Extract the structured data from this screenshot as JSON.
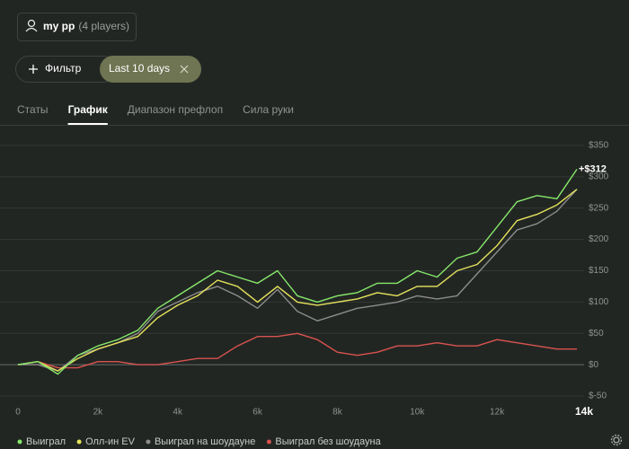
{
  "header": {
    "name": "my pp",
    "players": "(4 players)"
  },
  "filters": {
    "button": "Фильтр",
    "chip": "Last 10 days"
  },
  "tabs": {
    "items": [
      "Статы",
      "График",
      "Диапазон префлоп",
      "Сила руки"
    ],
    "active": 1
  },
  "chart_data": {
    "type": "line",
    "annotation": "+$312",
    "x": [
      0,
      500,
      1000,
      1500,
      2000,
      2500,
      3000,
      3500,
      4000,
      4500,
      5000,
      5500,
      6000,
      6500,
      7000,
      7500,
      8000,
      8500,
      9000,
      9500,
      10000,
      10500,
      11000,
      11500,
      12000,
      12500,
      13000,
      13500,
      14000
    ],
    "xlim": [
      0,
      14000
    ],
    "xticks": [
      0,
      {
        "value": 2000,
        "label": "2k"
      },
      {
        "value": 4000,
        "label": "4k"
      },
      {
        "value": 6000,
        "label": "6k"
      },
      {
        "value": 8000,
        "label": "8k"
      },
      {
        "value": 10000,
        "label": "10k"
      },
      {
        "value": 12000,
        "label": "12k"
      },
      {
        "value": 14000,
        "label": "14k"
      }
    ],
    "ylim": [
      -60,
      370
    ],
    "yticks": [
      {
        "value": 350,
        "label": "$350"
      },
      {
        "value": 300,
        "label": "$300"
      },
      {
        "value": 250,
        "label": "$250"
      },
      {
        "value": 200,
        "label": "$200"
      },
      {
        "value": 150,
        "label": "$150"
      },
      {
        "value": 100,
        "label": "$100"
      },
      {
        "value": 50,
        "label": "$50"
      },
      {
        "value": 0,
        "label": "$0"
      },
      {
        "value": -50,
        "label": "$-50"
      }
    ],
    "grid": true,
    "series": [
      {
        "name": "Выиграл",
        "color": "#86e86a",
        "values": [
          0,
          5,
          -15,
          15,
          30,
          40,
          55,
          90,
          110,
          130,
          150,
          140,
          130,
          150,
          110,
          100,
          110,
          115,
          130,
          130,
          150,
          140,
          170,
          180,
          220,
          260,
          270,
          265,
          312
        ]
      },
      {
        "name": "Олл-ин EV",
        "color": "#e6e45c",
        "values": [
          0,
          5,
          -10,
          10,
          25,
          35,
          45,
          75,
          95,
          110,
          135,
          125,
          100,
          125,
          100,
          95,
          100,
          105,
          115,
          110,
          125,
          125,
          150,
          160,
          190,
          230,
          240,
          255,
          280
        ]
      },
      {
        "name": "Выиграл на шоудауне",
        "color": "#8c8c8c",
        "values": [
          0,
          0,
          -10,
          15,
          25,
          35,
          50,
          85,
          100,
          115,
          125,
          110,
          90,
          120,
          85,
          70,
          80,
          90,
          95,
          100,
          110,
          105,
          110,
          145,
          180,
          215,
          225,
          245,
          280
        ]
      },
      {
        "name": "Выиграл без шоудауна",
        "color": "#d9534f",
        "values": [
          0,
          5,
          -5,
          -5,
          5,
          5,
          0,
          0,
          5,
          10,
          10,
          30,
          45,
          45,
          50,
          40,
          20,
          15,
          20,
          30,
          30,
          35,
          30,
          30,
          40,
          35,
          30,
          25,
          25
        ]
      }
    ]
  }
}
